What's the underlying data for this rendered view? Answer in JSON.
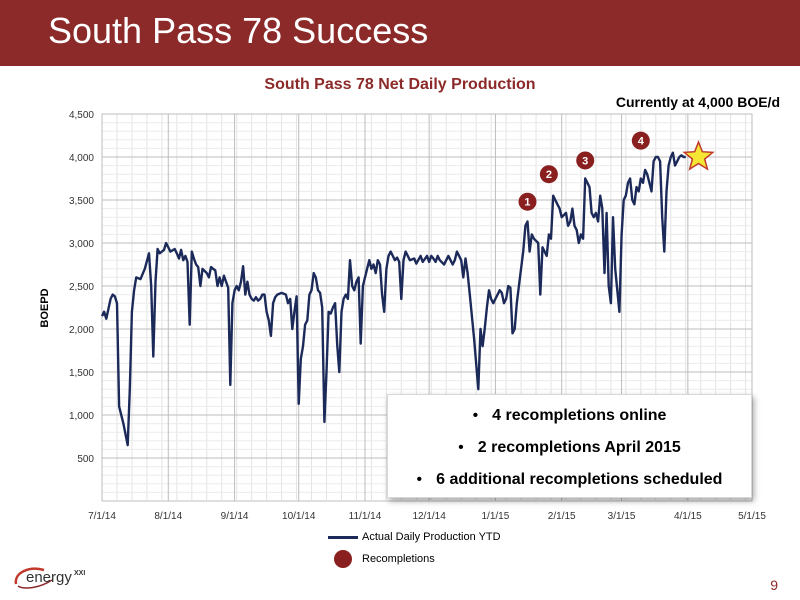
{
  "header": {
    "title": "South Pass 78 Success"
  },
  "annotation": "Currently at 4,000 BOE/d",
  "callout": {
    "bullets": [
      "4 recompletions online",
      "2 recompletions April 2015",
      "6 additional recompletions scheduled"
    ]
  },
  "legend": {
    "line_label": "Actual Daily Production YTD",
    "marker_label": "Recompletions"
  },
  "logo_text": "energy",
  "logo_suffix": "XXI",
  "page_number": "9",
  "colors": {
    "brand": "#8c2a2a",
    "series": "#1c2a5a",
    "marker": "#8a1f1f",
    "star_fill": "#f5e634",
    "star_stroke": "#c0392b"
  },
  "chart_data": {
    "type": "line",
    "title": "South Pass 78 Net Daily Production",
    "xlabel": "",
    "ylabel": "BOEPD",
    "x_tick_labels": [
      "7/1/14",
      "8/1/14",
      "9/1/14",
      "10/1/14",
      "11/1/14",
      "12/1/14",
      "1/1/15",
      "2/1/15",
      "3/1/15",
      "4/1/15",
      "5/1/15"
    ],
    "y_tick_labels": [
      "500",
      "1,000",
      "1,500",
      "2,000",
      "2,500",
      "3,000",
      "3,500",
      "4,000",
      "4,500"
    ],
    "y_tick_values": [
      500,
      1000,
      1500,
      2000,
      2500,
      3000,
      3500,
      4000,
      4500
    ],
    "ylim": [
      0,
      4500
    ],
    "xlim": [
      "2014-07-01",
      "2015-05-01"
    ],
    "grid": true,
    "legend_position": "bottom",
    "series": [
      {
        "name": "Actual Daily Production YTD",
        "points": [
          [
            "2014-07-01",
            2150
          ],
          [
            "2014-07-02",
            2200
          ],
          [
            "2014-07-03",
            2120
          ],
          [
            "2014-07-05",
            2350
          ],
          [
            "2014-07-06",
            2400
          ],
          [
            "2014-07-07",
            2380
          ],
          [
            "2014-07-08",
            2300
          ],
          [
            "2014-07-09",
            1100
          ],
          [
            "2014-07-11",
            900
          ],
          [
            "2014-07-13",
            650
          ],
          [
            "2014-07-14",
            1300
          ],
          [
            "2014-07-15",
            2200
          ],
          [
            "2014-07-16",
            2450
          ],
          [
            "2014-07-17",
            2600
          ],
          [
            "2014-07-19",
            2580
          ],
          [
            "2014-07-21",
            2700
          ],
          [
            "2014-07-23",
            2880
          ],
          [
            "2014-07-24",
            2500
          ],
          [
            "2014-07-25",
            1680
          ],
          [
            "2014-07-26",
            2550
          ],
          [
            "2014-07-27",
            2930
          ],
          [
            "2014-07-28",
            2880
          ],
          [
            "2014-07-29",
            2900
          ],
          [
            "2014-07-30",
            2920
          ],
          [
            "2014-07-31",
            3000
          ],
          [
            "2014-08-01",
            2950
          ],
          [
            "2014-08-02",
            2900
          ],
          [
            "2014-08-04",
            2930
          ],
          [
            "2014-08-05",
            2880
          ],
          [
            "2014-08-06",
            2820
          ],
          [
            "2014-08-07",
            2920
          ],
          [
            "2014-08-08",
            2800
          ],
          [
            "2014-08-09",
            2850
          ],
          [
            "2014-08-10",
            2780
          ],
          [
            "2014-08-11",
            2050
          ],
          [
            "2014-08-12",
            2900
          ],
          [
            "2014-08-13",
            2820
          ],
          [
            "2014-08-14",
            2750
          ],
          [
            "2014-08-15",
            2720
          ],
          [
            "2014-08-16",
            2500
          ],
          [
            "2014-08-17",
            2700
          ],
          [
            "2014-08-19",
            2650
          ],
          [
            "2014-08-20",
            2600
          ],
          [
            "2014-08-21",
            2720
          ],
          [
            "2014-08-23",
            2680
          ],
          [
            "2014-08-24",
            2500
          ],
          [
            "2014-08-25",
            2600
          ],
          [
            "2014-08-26",
            2500
          ],
          [
            "2014-08-27",
            2620
          ],
          [
            "2014-08-28",
            2550
          ],
          [
            "2014-08-29",
            2480
          ],
          [
            "2014-08-30",
            1350
          ],
          [
            "2014-08-31",
            2300
          ],
          [
            "2014-09-01",
            2450
          ],
          [
            "2014-09-02",
            2500
          ],
          [
            "2014-09-03",
            2450
          ],
          [
            "2014-09-04",
            2550
          ],
          [
            "2014-09-05",
            2730
          ],
          [
            "2014-09-06",
            2400
          ],
          [
            "2014-09-07",
            2550
          ],
          [
            "2014-09-08",
            2400
          ],
          [
            "2014-09-09",
            2350
          ],
          [
            "2014-09-10",
            2330
          ],
          [
            "2014-09-11",
            2370
          ],
          [
            "2014-09-12",
            2330
          ],
          [
            "2014-09-13",
            2350
          ],
          [
            "2014-09-14",
            2400
          ],
          [
            "2014-09-15",
            2400
          ],
          [
            "2014-09-16",
            2200
          ],
          [
            "2014-09-17",
            2100
          ],
          [
            "2014-09-18",
            1920
          ],
          [
            "2014-09-19",
            2300
          ],
          [
            "2014-09-20",
            2370
          ],
          [
            "2014-09-21",
            2400
          ],
          [
            "2014-09-23",
            2420
          ],
          [
            "2014-09-25",
            2400
          ],
          [
            "2014-09-26",
            2300
          ],
          [
            "2014-09-27",
            2350
          ],
          [
            "2014-09-28",
            2000
          ],
          [
            "2014-09-29",
            2200
          ],
          [
            "2014-09-30",
            2380
          ],
          [
            "2014-10-01",
            1130
          ],
          [
            "2014-10-02",
            1650
          ],
          [
            "2014-10-03",
            1800
          ],
          [
            "2014-10-04",
            2050
          ],
          [
            "2014-10-05",
            2100
          ],
          [
            "2014-10-06",
            2400
          ],
          [
            "2014-10-07",
            2450
          ],
          [
            "2014-10-08",
            2650
          ],
          [
            "2014-10-09",
            2600
          ],
          [
            "2014-10-10",
            2450
          ],
          [
            "2014-10-11",
            2420
          ],
          [
            "2014-10-12",
            2250
          ],
          [
            "2014-10-13",
            920
          ],
          [
            "2014-10-14",
            1500
          ],
          [
            "2014-10-15",
            2200
          ],
          [
            "2014-10-16",
            2180
          ],
          [
            "2014-10-17",
            2250
          ],
          [
            "2014-10-18",
            2300
          ],
          [
            "2014-10-19",
            1820
          ],
          [
            "2014-10-20",
            1500
          ],
          [
            "2014-10-21",
            2200
          ],
          [
            "2014-10-22",
            2350
          ],
          [
            "2014-10-23",
            2400
          ],
          [
            "2014-10-24",
            2350
          ],
          [
            "2014-10-25",
            2800
          ],
          [
            "2014-10-26",
            2500
          ],
          [
            "2014-10-27",
            2450
          ],
          [
            "2014-10-28",
            2550
          ],
          [
            "2014-10-29",
            2600
          ],
          [
            "2014-10-30",
            1830
          ],
          [
            "2014-10-31",
            2500
          ],
          [
            "2014-11-01",
            2600
          ],
          [
            "2014-11-02",
            2700
          ],
          [
            "2014-11-03",
            2800
          ],
          [
            "2014-11-04",
            2700
          ],
          [
            "2014-11-05",
            2750
          ],
          [
            "2014-11-06",
            2650
          ],
          [
            "2014-11-07",
            2800
          ],
          [
            "2014-11-08",
            2750
          ],
          [
            "2014-11-09",
            2400
          ],
          [
            "2014-11-10",
            2200
          ],
          [
            "2014-11-11",
            2700
          ],
          [
            "2014-11-12",
            2850
          ],
          [
            "2014-11-13",
            2900
          ],
          [
            "2014-11-14",
            2850
          ],
          [
            "2014-11-15",
            2800
          ],
          [
            "2014-11-16",
            2830
          ],
          [
            "2014-11-17",
            2780
          ],
          [
            "2014-11-18",
            2350
          ],
          [
            "2014-11-19",
            2800
          ],
          [
            "2014-11-20",
            2900
          ],
          [
            "2014-11-21",
            2850
          ],
          [
            "2014-11-22",
            2800
          ],
          [
            "2014-11-24",
            2820
          ],
          [
            "2014-11-25",
            2760
          ],
          [
            "2014-11-27",
            2850
          ],
          [
            "2014-11-28",
            2780
          ],
          [
            "2014-11-30",
            2850
          ],
          [
            "2014-12-01",
            2780
          ],
          [
            "2014-12-02",
            2850
          ],
          [
            "2014-12-03",
            2820
          ],
          [
            "2014-12-04",
            2780
          ],
          [
            "2014-12-05",
            2850
          ],
          [
            "2014-12-06",
            2800
          ],
          [
            "2014-12-08",
            2750
          ],
          [
            "2014-12-09",
            2800
          ],
          [
            "2014-12-10",
            2850
          ],
          [
            "2014-12-11",
            2800
          ],
          [
            "2014-12-12",
            2750
          ],
          [
            "2014-12-13",
            2800
          ],
          [
            "2014-12-14",
            2900
          ],
          [
            "2014-12-15",
            2850
          ],
          [
            "2014-12-16",
            2800
          ],
          [
            "2014-12-17",
            2600
          ],
          [
            "2014-12-18",
            2820
          ],
          [
            "2014-12-19",
            2650
          ],
          [
            "2014-12-20",
            2400
          ],
          [
            "2014-12-21",
            2150
          ],
          [
            "2014-12-22",
            1900
          ],
          [
            "2014-12-24",
            1300
          ],
          [
            "2014-12-25",
            2000
          ],
          [
            "2014-12-26",
            1800
          ],
          [
            "2014-12-27",
            2000
          ],
          [
            "2014-12-28",
            2250
          ],
          [
            "2014-12-29",
            2450
          ],
          [
            "2014-12-30",
            2350
          ],
          [
            "2014-12-31",
            2300
          ],
          [
            "2015-01-01",
            2350
          ],
          [
            "2015-01-02",
            2400
          ],
          [
            "2015-01-03",
            2450
          ],
          [
            "2015-01-04",
            2420
          ],
          [
            "2015-01-05",
            2300
          ],
          [
            "2015-01-06",
            2350
          ],
          [
            "2015-01-07",
            2500
          ],
          [
            "2015-01-08",
            2480
          ],
          [
            "2015-01-09",
            1950
          ],
          [
            "2015-01-10",
            2000
          ],
          [
            "2015-01-11",
            2300
          ],
          [
            "2015-01-12",
            2500
          ],
          [
            "2015-01-14",
            2900
          ],
          [
            "2015-01-15",
            3200
          ],
          [
            "2015-01-16",
            3250
          ],
          [
            "2015-01-17",
            2900
          ],
          [
            "2015-01-18",
            3100
          ],
          [
            "2015-01-19",
            3050
          ],
          [
            "2015-01-21",
            3000
          ],
          [
            "2015-01-22",
            2400
          ],
          [
            "2015-01-23",
            2950
          ],
          [
            "2015-01-24",
            2900
          ],
          [
            "2015-01-25",
            2850
          ],
          [
            "2015-01-26",
            3100
          ],
          [
            "2015-01-27",
            3050
          ],
          [
            "2015-01-28",
            3550
          ],
          [
            "2015-01-29",
            3500
          ],
          [
            "2015-01-30",
            3450
          ],
          [
            "2015-01-31",
            3400
          ],
          [
            "2015-02-01",
            3300
          ],
          [
            "2015-02-03",
            3350
          ],
          [
            "2015-02-04",
            3200
          ],
          [
            "2015-02-05",
            3250
          ],
          [
            "2015-02-06",
            3400
          ],
          [
            "2015-02-07",
            3200
          ],
          [
            "2015-02-08",
            3150
          ],
          [
            "2015-02-09",
            3000
          ],
          [
            "2015-02-10",
            3100
          ],
          [
            "2015-02-11",
            3050
          ],
          [
            "2015-02-12",
            3750
          ],
          [
            "2015-02-13",
            3700
          ],
          [
            "2015-02-14",
            3650
          ],
          [
            "2015-02-15",
            3350
          ],
          [
            "2015-02-16",
            3300
          ],
          [
            "2015-02-17",
            3350
          ],
          [
            "2015-02-18",
            3250
          ],
          [
            "2015-02-19",
            3550
          ],
          [
            "2015-02-20",
            3400
          ],
          [
            "2015-02-21",
            2650
          ],
          [
            "2015-02-22",
            3350
          ],
          [
            "2015-02-23",
            2500
          ],
          [
            "2015-02-24",
            2300
          ],
          [
            "2015-02-25",
            3300
          ],
          [
            "2015-02-26",
            2700
          ],
          [
            "2015-02-27",
            2450
          ],
          [
            "2015-02-28",
            2200
          ],
          [
            "2015-03-01",
            3100
          ],
          [
            "2015-03-02",
            3500
          ],
          [
            "2015-03-03",
            3550
          ],
          [
            "2015-03-04",
            3700
          ],
          [
            "2015-03-05",
            3750
          ],
          [
            "2015-03-06",
            3500
          ],
          [
            "2015-03-07",
            3450
          ],
          [
            "2015-03-08",
            3650
          ],
          [
            "2015-03-09",
            3600
          ],
          [
            "2015-03-10",
            3750
          ],
          [
            "2015-03-11",
            3700
          ],
          [
            "2015-03-12",
            3850
          ],
          [
            "2015-03-13",
            3800
          ],
          [
            "2015-03-14",
            3700
          ],
          [
            "2015-03-15",
            3600
          ],
          [
            "2015-03-16",
            3950
          ],
          [
            "2015-03-17",
            4000
          ],
          [
            "2015-03-18",
            4000
          ],
          [
            "2015-03-19",
            3950
          ],
          [
            "2015-03-20",
            3300
          ],
          [
            "2015-03-21",
            2900
          ],
          [
            "2015-03-22",
            3600
          ],
          [
            "2015-03-23",
            3900
          ],
          [
            "2015-03-24",
            4000
          ],
          [
            "2015-03-25",
            4050
          ],
          [
            "2015-03-26",
            3900
          ],
          [
            "2015-03-27",
            3950
          ],
          [
            "2015-03-28",
            4000
          ],
          [
            "2015-03-29",
            4020
          ],
          [
            "2015-03-30",
            4000
          ],
          [
            "2015-03-31",
            4000
          ]
        ]
      }
    ],
    "markers": [
      {
        "label": "1",
        "date": "2015-01-16",
        "value": 3480
      },
      {
        "label": "2",
        "date": "2015-01-26",
        "value": 3800
      },
      {
        "label": "3",
        "date": "2015-02-12",
        "value": 3960
      },
      {
        "label": "4",
        "date": "2015-03-10",
        "value": 4190
      }
    ],
    "star": {
      "date": "2015-04-06",
      "value": 4000
    }
  }
}
